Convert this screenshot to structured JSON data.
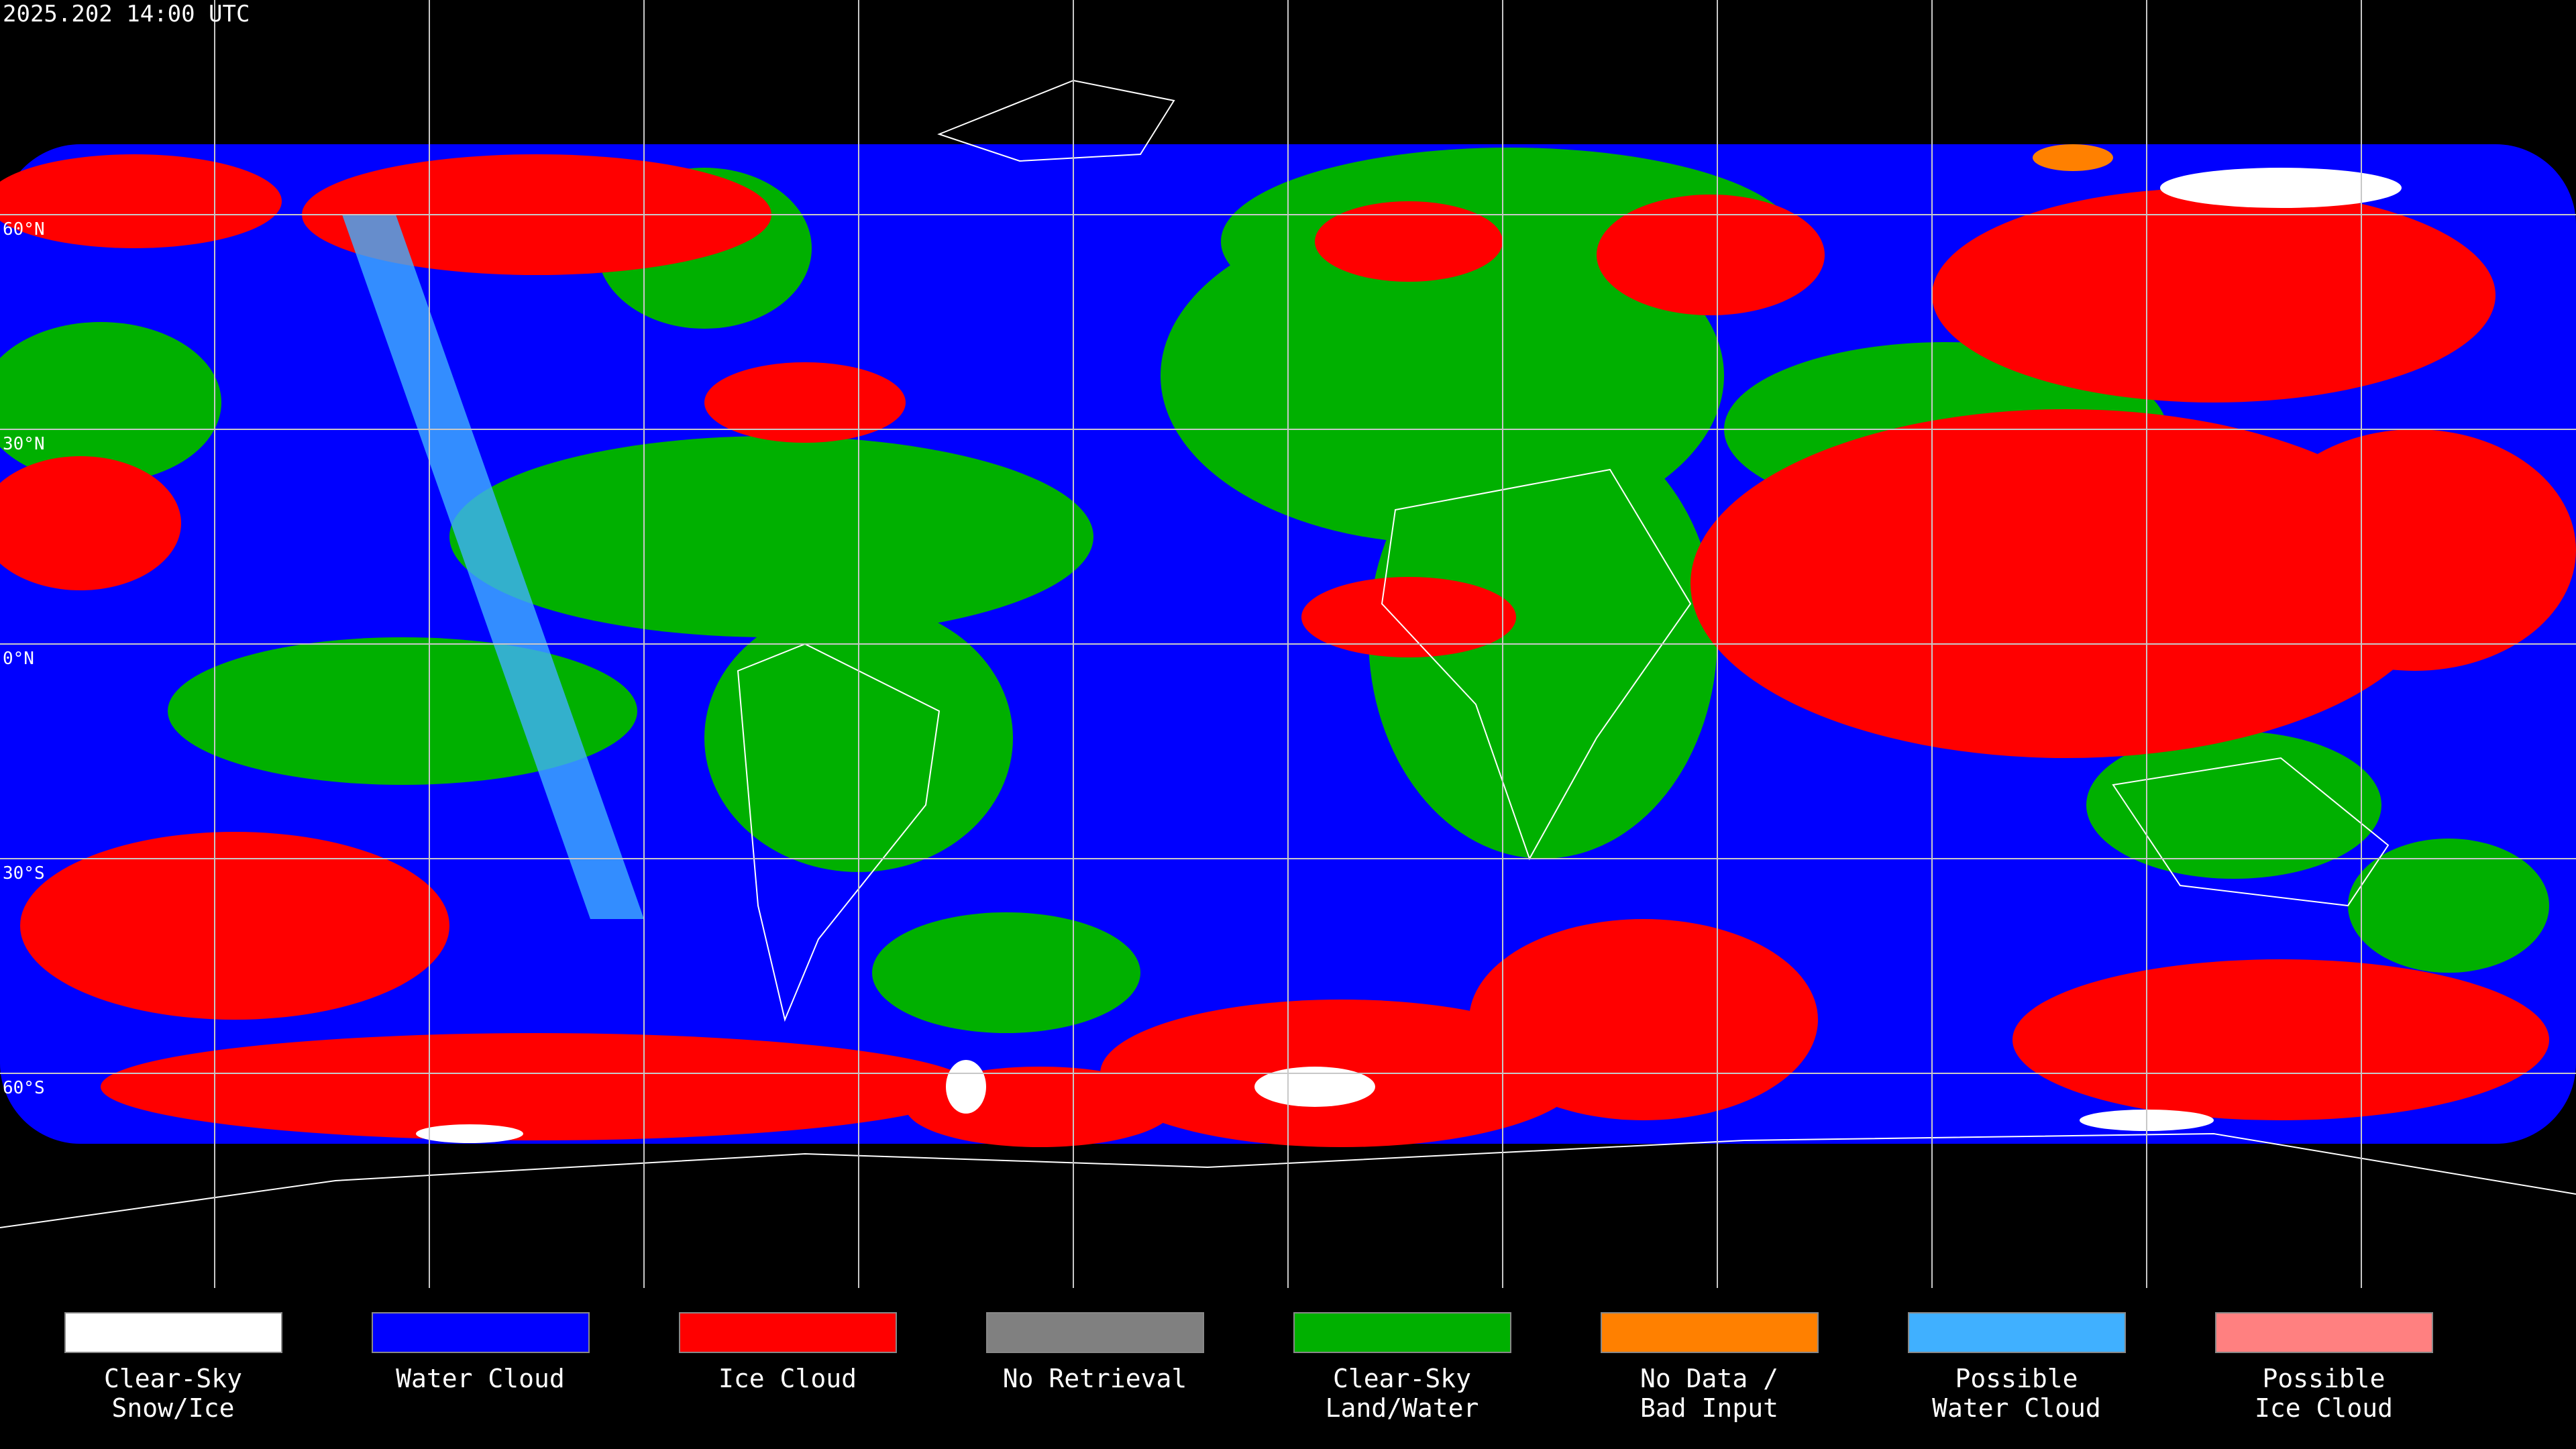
{
  "title": "2025.202 14:00 UTC",
  "latitude_labels": [
    "60°N",
    "30°N",
    "0°N",
    "30°S",
    "60°S"
  ],
  "legend": {
    "items": [
      {
        "label": [
          "Clear-Sky",
          "Snow/Ice"
        ],
        "color": "#ffffff"
      },
      {
        "label": [
          "Water Cloud"
        ],
        "color": "#0000ff"
      },
      {
        "label": [
          "Ice Cloud"
        ],
        "color": "#ff0000"
      },
      {
        "label": [
          "No Retrieval"
        ],
        "color": "#808080"
      },
      {
        "label": [
          "Clear-Sky",
          "Land/Water"
        ],
        "color": "#00b000"
      },
      {
        "label": [
          "No Data /",
          "Bad Input"
        ],
        "color": "#ff8000"
      },
      {
        "label": [
          "Possible",
          "Water Cloud"
        ],
        "color": "#40b0ff"
      },
      {
        "label": [
          "Possible",
          "Ice Cloud"
        ],
        "color": "#ff8080"
      }
    ]
  }
}
